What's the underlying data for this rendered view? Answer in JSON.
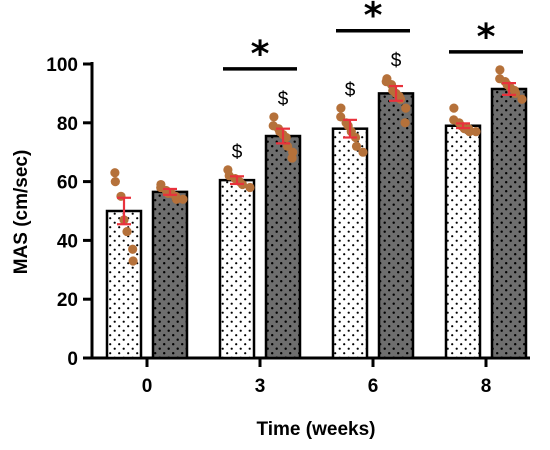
{
  "chart_data": {
    "type": "bar",
    "xlabel": "Time (weeks)",
    "ylabel": "MAS (cm/sec)",
    "ylim": [
      0,
      100
    ],
    "yticks": [
      0,
      20,
      40,
      60,
      80,
      100
    ],
    "categories": [
      "0",
      "3",
      "6",
      "8"
    ],
    "grid": false,
    "colors": {
      "dotted": "#ffffff",
      "dark": "#6e6e6e",
      "points": "#b5713a",
      "error": "#e8323c"
    },
    "series": [
      {
        "pattern": "dotted-light",
        "values": [
          50,
          60.5,
          78,
          79
        ],
        "errors": [
          4.5,
          1.3,
          3,
          0.8
        ],
        "points": [
          [
            63,
            60,
            55,
            47,
            43,
            37,
            33
          ],
          [
            64,
            62,
            61,
            60,
            59,
            58
          ],
          [
            85,
            82,
            80,
            79,
            77,
            75,
            72,
            70
          ],
          [
            85,
            81,
            80,
            79,
            78,
            78,
            77,
            77
          ]
        ],
        "dollar": [
          false,
          true,
          true,
          false
        ]
      },
      {
        "pattern": "dotted-dark",
        "values": [
          56.5,
          75.5,
          90,
          91.5
        ],
        "errors": [
          1,
          2.5,
          2.5,
          2
        ],
        "points": [
          [
            59,
            58,
            57,
            56,
            56,
            55,
            54,
            54
          ],
          [
            82,
            79,
            78,
            77,
            76,
            75,
            72,
            70,
            68
          ],
          [
            95,
            94,
            93,
            91,
            90,
            89,
            88,
            85,
            80
          ],
          [
            98,
            95,
            94,
            93,
            92,
            91,
            90,
            88
          ]
        ],
        "dollar": [
          false,
          true,
          true,
          false
        ]
      }
    ],
    "significance": [
      {
        "category": "3",
        "label": "*"
      },
      {
        "category": "6",
        "label": "*"
      },
      {
        "category": "8",
        "label": "*"
      }
    ],
    "dollar_label": "$"
  }
}
